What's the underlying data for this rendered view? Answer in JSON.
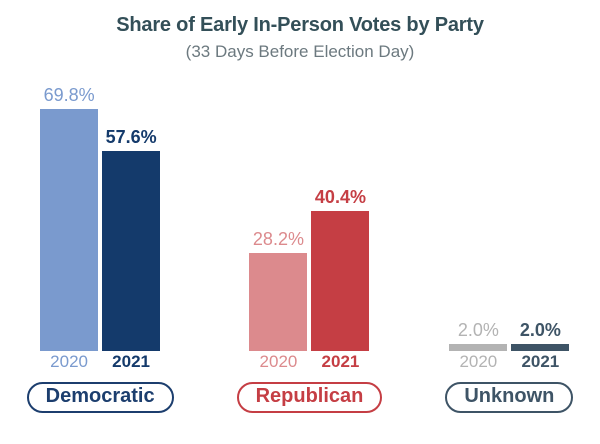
{
  "header": {
    "title": "Share of Early In-Person Votes by Party",
    "subtitle": "(33 Days Before Election Day)"
  },
  "chart_data": {
    "type": "bar",
    "title": "Share of Early In-Person Votes by Party",
    "subtitle": "(33 Days Before Election Day)",
    "categories": [
      "Democratic",
      "Republican",
      "Unknown"
    ],
    "series": [
      {
        "name": "2020",
        "values": [
          69.8,
          28.2,
          2.0
        ]
      },
      {
        "name": "2021",
        "values": [
          57.6,
          40.4,
          2.0
        ]
      }
    ],
    "value_labels": [
      [
        "69.8%",
        "57.6%"
      ],
      [
        "28.2%",
        "40.4%"
      ],
      [
        "2.0%",
        "2.0%"
      ]
    ],
    "ylim": [
      0,
      75
    ],
    "grid": false,
    "axis_lines": false,
    "legend_position": "year-labels-below-bars-and-category-pills"
  },
  "groups": [
    {
      "label": "Democratic",
      "pill_color": "#1c3e6e",
      "bars": [
        {
          "year": "2020",
          "value": 69.8,
          "display": "69.8%",
          "color": "#7a9ace"
        },
        {
          "year": "2021",
          "value": 57.6,
          "display": "57.6%",
          "color": "#143a6b"
        }
      ]
    },
    {
      "label": "Republican",
      "pill_color": "#c53e44",
      "bars": [
        {
          "year": "2020",
          "value": 28.2,
          "display": "28.2%",
          "color": "#dc8a8d"
        },
        {
          "year": "2021",
          "value": 40.4,
          "display": "40.4%",
          "color": "#c53e44"
        }
      ]
    },
    {
      "label": "Unknown",
      "pill_color": "#3e5466",
      "bars": [
        {
          "year": "2020",
          "value": 2.0,
          "display": "2.0%",
          "color": "#b3b3b3"
        },
        {
          "year": "2021",
          "value": 2.0,
          "display": "2.0%",
          "color": "#3e5466"
        }
      ]
    }
  ],
  "colors": {
    "background": "#ffffff",
    "title": "#334f58",
    "subtitle": "#6c797f"
  }
}
